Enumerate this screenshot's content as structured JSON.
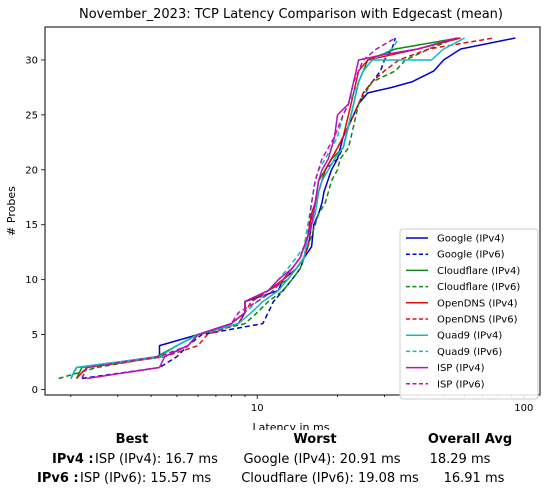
{
  "chart_data": {
    "type": "line",
    "title": "November_2023: TCP Latency Comparison with Edgecast (mean)",
    "xlabel": "Latency in ms",
    "ylabel": "# Probes",
    "xscale": "log",
    "xlim": [
      1.6,
      115
    ],
    "ylim": [
      -0.5,
      33
    ],
    "xticks": [
      {
        "value": 10,
        "label": "10"
      },
      {
        "value": 100,
        "label": "100"
      }
    ],
    "yticks": [
      0,
      5,
      10,
      15,
      20,
      25,
      30
    ],
    "grid": false,
    "legend_position": "lower-right",
    "series": [
      {
        "name": "Google (IPv4)",
        "color": "#0000cc",
        "dash": "solid",
        "points": [
          [
            2.0,
            1
          ],
          [
            2.1,
            2
          ],
          [
            4.3,
            3
          ],
          [
            4.3,
            4
          ],
          [
            6,
            5
          ],
          [
            8.5,
            6
          ],
          [
            9,
            7
          ],
          [
            9,
            8
          ],
          [
            12,
            9
          ],
          [
            12.5,
            10
          ],
          [
            14,
            11
          ],
          [
            15,
            12
          ],
          [
            16,
            13
          ],
          [
            16.3,
            15
          ],
          [
            17,
            16
          ],
          [
            17.5,
            17
          ],
          [
            17.8,
            18
          ],
          [
            19,
            20
          ],
          [
            20,
            21
          ],
          [
            21,
            23
          ],
          [
            22,
            24
          ],
          [
            23,
            25
          ],
          [
            24,
            26
          ],
          [
            26,
            27
          ],
          [
            32,
            27.5
          ],
          [
            38,
            28
          ],
          [
            46,
            29
          ],
          [
            50,
            30
          ],
          [
            58,
            31
          ],
          [
            93,
            32
          ]
        ]
      },
      {
        "name": "Google (IPv6)",
        "color": "#0000cc",
        "dash": "dashed",
        "points": [
          [
            2.2,
            1
          ],
          [
            4.3,
            2
          ],
          [
            5,
            3
          ],
          [
            5.5,
            4
          ],
          [
            6.2,
            5
          ],
          [
            10.5,
            6
          ],
          [
            11,
            7
          ],
          [
            11.5,
            8
          ],
          [
            12.5,
            9
          ],
          [
            13.5,
            10
          ],
          [
            14.5,
            11
          ],
          [
            15,
            12
          ],
          [
            15.5,
            13
          ],
          [
            15.8,
            14
          ],
          [
            16,
            16
          ],
          [
            16.5,
            17
          ],
          [
            17,
            18
          ],
          [
            17.5,
            19
          ],
          [
            18,
            20
          ],
          [
            20,
            21
          ],
          [
            21,
            22
          ],
          [
            22,
            24
          ],
          [
            23,
            25
          ],
          [
            24,
            26
          ],
          [
            25,
            27
          ],
          [
            27,
            28
          ],
          [
            29,
            29
          ],
          [
            30,
            30
          ],
          [
            32,
            31
          ],
          [
            33,
            32
          ]
        ]
      },
      {
        "name": "Cloudflare (IPv4)",
        "color": "#118811",
        "dash": "solid",
        "points": [
          [
            2.1,
            1
          ],
          [
            2.2,
            2
          ],
          [
            4.2,
            3
          ],
          [
            5,
            4
          ],
          [
            6,
            5
          ],
          [
            8,
            6
          ],
          [
            9,
            7
          ],
          [
            9,
            8
          ],
          [
            11,
            9
          ],
          [
            13,
            10
          ],
          [
            14,
            11
          ],
          [
            15,
            12
          ],
          [
            15.5,
            14
          ],
          [
            16,
            16
          ],
          [
            16.5,
            17
          ],
          [
            17,
            19
          ],
          [
            18,
            20
          ],
          [
            19,
            21
          ],
          [
            21,
            22
          ],
          [
            22,
            24
          ],
          [
            23,
            26
          ],
          [
            24,
            28
          ],
          [
            25,
            29
          ],
          [
            26,
            30
          ],
          [
            33,
            31
          ],
          [
            57,
            32
          ]
        ]
      },
      {
        "name": "Cloudflare (IPv6)",
        "color": "#118811",
        "dash": "dashed",
        "points": [
          [
            1.8,
            1
          ],
          [
            2.5,
            2
          ],
          [
            4.3,
            3
          ],
          [
            5,
            4
          ],
          [
            6,
            5
          ],
          [
            9,
            6
          ],
          [
            10,
            7
          ],
          [
            11,
            8
          ],
          [
            12.5,
            9
          ],
          [
            13.5,
            10
          ],
          [
            14.5,
            11
          ],
          [
            15.5,
            13
          ],
          [
            16,
            14
          ],
          [
            16.5,
            15
          ],
          [
            17,
            16
          ],
          [
            18,
            17
          ],
          [
            18.5,
            18
          ],
          [
            19,
            19
          ],
          [
            20,
            20
          ],
          [
            20.5,
            21
          ],
          [
            22,
            22
          ],
          [
            23,
            24
          ],
          [
            24,
            26
          ],
          [
            27,
            28
          ],
          [
            33,
            29
          ],
          [
            36,
            30
          ],
          [
            44,
            31
          ],
          [
            56,
            32
          ]
        ]
      },
      {
        "name": "OpenDNS (IPv4)",
        "color": "#dd1111",
        "dash": "solid",
        "points": [
          [
            2.1,
            1
          ],
          [
            2.3,
            2
          ],
          [
            4.5,
            3
          ],
          [
            5.5,
            4
          ],
          [
            6,
            5
          ],
          [
            8,
            6
          ],
          [
            9,
            7
          ],
          [
            9,
            8
          ],
          [
            11,
            9
          ],
          [
            12.5,
            10
          ],
          [
            13.5,
            11
          ],
          [
            14.5,
            12
          ],
          [
            15.5,
            14
          ],
          [
            16,
            16
          ],
          [
            16.5,
            17
          ],
          [
            17,
            18
          ],
          [
            18,
            20
          ],
          [
            19,
            21
          ],
          [
            20,
            22
          ],
          [
            21,
            23
          ],
          [
            22,
            25
          ],
          [
            23,
            27
          ],
          [
            24,
            29
          ],
          [
            26,
            30
          ],
          [
            40,
            31
          ],
          [
            58,
            32
          ]
        ]
      },
      {
        "name": "OpenDNS (IPv6)",
        "color": "#dd1111",
        "dash": "dashed",
        "points": [
          [
            2.2,
            1
          ],
          [
            2.3,
            2
          ],
          [
            4.5,
            3
          ],
          [
            6,
            4
          ],
          [
            6.5,
            5
          ],
          [
            8.5,
            6
          ],
          [
            9,
            7
          ],
          [
            9.5,
            8
          ],
          [
            11,
            9
          ],
          [
            12.5,
            10
          ],
          [
            14,
            11
          ],
          [
            15,
            12
          ],
          [
            15.5,
            13
          ],
          [
            16,
            15
          ],
          [
            16.5,
            16
          ],
          [
            17,
            18
          ],
          [
            17.5,
            19
          ],
          [
            18,
            20
          ],
          [
            19,
            21
          ],
          [
            20,
            22
          ],
          [
            21,
            23
          ],
          [
            22,
            24
          ],
          [
            23,
            25
          ],
          [
            24,
            26
          ],
          [
            25,
            27
          ],
          [
            27,
            28
          ],
          [
            30,
            29
          ],
          [
            34,
            30
          ],
          [
            44,
            31
          ],
          [
            77,
            32
          ]
        ]
      },
      {
        "name": "Quad9 (IPv4)",
        "color": "#11bbbb",
        "dash": "solid",
        "points": [
          [
            2,
            1
          ],
          [
            2.1,
            2
          ],
          [
            4.3,
            3
          ],
          [
            5,
            4
          ],
          [
            6,
            5
          ],
          [
            8.5,
            6
          ],
          [
            9.5,
            7
          ],
          [
            10.5,
            8
          ],
          [
            12,
            9
          ],
          [
            13,
            10
          ],
          [
            14,
            11
          ],
          [
            15,
            12
          ],
          [
            15.5,
            14
          ],
          [
            16,
            15
          ],
          [
            16.5,
            16
          ],
          [
            17,
            18
          ],
          [
            17.5,
            19
          ],
          [
            18.5,
            20
          ],
          [
            19.5,
            21
          ],
          [
            21,
            22
          ],
          [
            22,
            24
          ],
          [
            23,
            26
          ],
          [
            24,
            28
          ],
          [
            25,
            29
          ],
          [
            27,
            30
          ],
          [
            45,
            30
          ],
          [
            50,
            31
          ],
          [
            60,
            32
          ]
        ]
      },
      {
        "name": "Quad9 (IPv6)",
        "color": "#11bbbb",
        "dash": "dashed",
        "points": [
          [
            2,
            1
          ],
          [
            2.1,
            2
          ],
          [
            4.5,
            3
          ],
          [
            5.5,
            4
          ],
          [
            6,
            5
          ],
          [
            8,
            6
          ],
          [
            9,
            7
          ],
          [
            10,
            8
          ],
          [
            11,
            9
          ],
          [
            12,
            10
          ],
          [
            13,
            11
          ],
          [
            14,
            12
          ],
          [
            15,
            13
          ],
          [
            15.5,
            15
          ],
          [
            16,
            17
          ],
          [
            16.5,
            19
          ],
          [
            17,
            20
          ],
          [
            18,
            21
          ],
          [
            19,
            22
          ],
          [
            20,
            23
          ],
          [
            21,
            25
          ],
          [
            22,
            26
          ],
          [
            23,
            27
          ],
          [
            24,
            28
          ],
          [
            25,
            29
          ],
          [
            27,
            30
          ],
          [
            32,
            31
          ],
          [
            34,
            32
          ]
        ]
      },
      {
        "name": "ISP (IPv4)",
        "color": "#bb11bb",
        "dash": "solid",
        "points": [
          [
            2.3,
            1
          ],
          [
            4.3,
            2
          ],
          [
            4.5,
            3
          ],
          [
            5.5,
            4
          ],
          [
            6,
            5
          ],
          [
            8,
            6
          ],
          [
            9,
            7
          ],
          [
            9,
            8
          ],
          [
            11,
            9
          ],
          [
            12,
            10
          ],
          [
            13.5,
            11
          ],
          [
            14.5,
            12
          ],
          [
            15.5,
            14
          ],
          [
            16,
            15
          ],
          [
            16.5,
            17
          ],
          [
            17,
            19
          ],
          [
            17.5,
            20
          ],
          [
            18.5,
            21
          ],
          [
            19.5,
            23
          ],
          [
            20,
            25
          ],
          [
            22,
            26
          ],
          [
            23,
            28
          ],
          [
            24,
            30
          ],
          [
            30,
            30.5
          ],
          [
            40,
            31
          ],
          [
            56,
            32
          ]
        ]
      },
      {
        "name": "ISP (IPv6)",
        "color": "#bb11bb",
        "dash": "dashed",
        "points": [
          [
            2.2,
            1
          ],
          [
            2.3,
            2
          ],
          [
            4.3,
            3
          ],
          [
            5.5,
            4
          ],
          [
            6,
            5
          ],
          [
            8,
            6
          ],
          [
            8.5,
            7
          ],
          [
            10,
            8
          ],
          [
            11.5,
            9
          ],
          [
            12.5,
            10
          ],
          [
            13.5,
            11
          ],
          [
            14.5,
            12
          ],
          [
            15,
            13
          ],
          [
            15.5,
            14
          ],
          [
            15.8,
            16
          ],
          [
            16,
            17
          ],
          [
            16.5,
            19
          ],
          [
            17,
            20
          ],
          [
            17.5,
            21
          ],
          [
            18.5,
            22
          ],
          [
            19.5,
            23
          ],
          [
            21,
            25
          ],
          [
            22,
            26
          ],
          [
            23,
            28
          ],
          [
            24,
            29
          ],
          [
            25,
            30
          ],
          [
            28,
            31
          ],
          [
            33,
            32
          ]
        ]
      }
    ]
  },
  "summary": {
    "headers": {
      "best": "Best",
      "worst": "Worst",
      "avg": "Overall Avg"
    },
    "rows": [
      {
        "label": "IPv4 :",
        "best": "ISP (IPv4): 16.7 ms",
        "worst": "Google (IPv4): 20.91 ms",
        "avg": "18.29 ms"
      },
      {
        "label": "IPv6 :",
        "best": "ISP (IPv6): 15.57 ms",
        "worst": "Cloudflare (IPv6): 19.08 ms",
        "avg": "16.91 ms"
      }
    ]
  }
}
